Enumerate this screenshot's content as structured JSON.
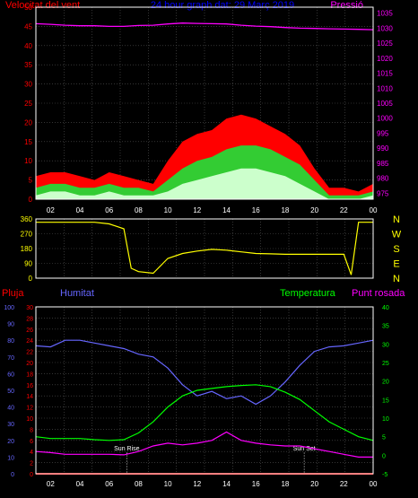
{
  "colors": {
    "background": "#000000",
    "frame": "#ffffff",
    "grid": "#555555",
    "wind_gust": "#ff0000",
    "wind_avg": "#33cc33",
    "wind_min": "#ccffcc",
    "pressure": "#ff00ff",
    "direction": "#ffff00",
    "rain": "#ff0000",
    "humidity": "#6666ff",
    "temperature": "#00ff00",
    "dewpoint": "#ff00ff",
    "title": "#0000ff"
  },
  "chart_data": [
    {
      "type": "line",
      "title": "24 hour graph dat: 29 Març 2019",
      "ylabel_left": "Velocitat del vent",
      "ylabel_right": "Pressió",
      "x_ticks": [
        "02",
        "04",
        "06",
        "08",
        "10",
        "12",
        "14",
        "16",
        "18",
        "20",
        "22",
        "00"
      ],
      "x_range": [
        1,
        24
      ],
      "y_left_ticks": [
        "0",
        "5",
        "10",
        "15",
        "20",
        "25",
        "30",
        "35",
        "40",
        "45",
        "50"
      ],
      "y_left_range": [
        0,
        50
      ],
      "y_right_ticks": [
        "975",
        "980",
        "985",
        "990",
        "995",
        "1000",
        "1005",
        "1010",
        "1015",
        "1020",
        "1025",
        "1030",
        "1035"
      ],
      "y_right_range": [
        973,
        1037
      ],
      "grid": true,
      "series": [
        {
          "name": "Pressió",
          "axis": "right",
          "x": [
            1,
            2,
            3,
            4,
            5,
            6,
            7,
            8,
            9,
            10,
            11,
            12,
            13,
            14,
            15,
            16,
            17,
            18,
            19,
            20,
            21,
            22,
            23,
            24
          ],
          "values": [
            1031.5,
            1031.3,
            1031,
            1030.8,
            1030.8,
            1030.6,
            1030.6,
            1030.9,
            1031,
            1031.4,
            1031.7,
            1031.6,
            1031.5,
            1031.4,
            1031,
            1030.7,
            1030.5,
            1030.2,
            1030,
            1029.9,
            1029.8,
            1029.7,
            1029.6,
            1029.5
          ]
        },
        {
          "axis": "left",
          "x": [
            1,
            2,
            3,
            4,
            5,
            6,
            7,
            8,
            9,
            10,
            11,
            12,
            13,
            14,
            15,
            16,
            17,
            18,
            19,
            20,
            21,
            22,
            23,
            24
          ],
          "values": [
            6,
            7,
            7,
            6,
            5,
            7,
            6,
            5,
            4,
            10,
            15,
            17,
            18,
            21,
            22,
            21,
            19,
            17,
            14,
            8,
            3,
            3,
            2,
            4
          ]
        },
        {
          "axis": "left",
          "x": [
            1,
            2,
            3,
            4,
            5,
            6,
            7,
            8,
            9,
            10,
            11,
            12,
            13,
            14,
            15,
            16,
            17,
            18,
            19,
            20,
            21,
            22,
            23,
            24
          ],
          "values": [
            3,
            4,
            4,
            3,
            3,
            4,
            3,
            3,
            2,
            5,
            8,
            10,
            11,
            13,
            14,
            14,
            13,
            11,
            9,
            5,
            1,
            1,
            1,
            2
          ]
        },
        {
          "axis": "left",
          "x": [
            1,
            2,
            3,
            4,
            5,
            6,
            7,
            8,
            9,
            10,
            11,
            12,
            13,
            14,
            15,
            16,
            17,
            18,
            19,
            20,
            21,
            22,
            23,
            24
          ],
          "values": [
            1,
            2,
            2,
            1,
            1,
            2,
            1,
            1,
            1,
            2,
            4,
            5,
            6,
            7,
            8,
            8,
            7,
            6,
            4,
            2,
            0,
            0,
            0,
            1
          ]
        }
      ]
    },
    {
      "type": "line",
      "y_left_ticks": [
        "360",
        "270",
        "180",
        "90",
        "0"
      ],
      "y_right_letters": [
        "N",
        "W",
        "S",
        "E",
        "N"
      ],
      "y_range": [
        0,
        360
      ],
      "x_range": [
        1,
        24
      ],
      "series": [
        {
          "axis": "left",
          "x": [
            1,
            2,
            3,
            4,
            5,
            6,
            7,
            7.5,
            8,
            9,
            10,
            11,
            12,
            13,
            14,
            15,
            16,
            17,
            18,
            19,
            20,
            21,
            22,
            22.5,
            23,
            24
          ],
          "values": [
            340,
            340,
            340,
            340,
            340,
            330,
            300,
            60,
            40,
            30,
            120,
            150,
            165,
            175,
            170,
            160,
            150,
            148,
            145,
            145,
            145,
            145,
            145,
            20,
            340,
            340
          ]
        }
      ]
    },
    {
      "type": "line",
      "ylabel_rain": "Pluja",
      "ylabel_humidity": "Humitat",
      "ylabel_temperature": "Temperatura",
      "ylabel_dewpoint": "Punt rosada",
      "x_ticks": [
        "02",
        "04",
        "06",
        "08",
        "10",
        "12",
        "14",
        "16",
        "18",
        "20",
        "22",
        "00"
      ],
      "x_range": [
        1,
        24
      ],
      "y_rain_ticks": [
        "0",
        "10",
        "20",
        "30",
        "40",
        "50",
        "60",
        "70",
        "80",
        "90",
        "100"
      ],
      "y_hum_ticks": [
        "0",
        "2",
        "4",
        "6",
        "8",
        "10",
        "12",
        "14",
        "16",
        "18",
        "20",
        "22",
        "24",
        "26",
        "28",
        "30"
      ],
      "y_temp_ticks": [
        "-5",
        "0",
        "5",
        "10",
        "15",
        "20",
        "25",
        "30",
        "35",
        "40"
      ],
      "annotations": [
        {
          "text": "Sun Rise",
          "x": 7.2
        },
        {
          "text": "Sun Set",
          "x": 19.3
        }
      ],
      "series": [
        {
          "axis": "humidity",
          "range": [
            0,
            30
          ],
          "x": [
            1,
            2,
            3,
            4,
            5,
            6,
            7,
            8,
            9,
            10,
            11,
            12,
            13,
            14,
            15,
            16,
            17,
            18,
            19,
            20,
            21,
            22,
            23,
            24
          ],
          "values": [
            23,
            22.8,
            24,
            24,
            23.5,
            23,
            22.5,
            21.5,
            21,
            19,
            16,
            14,
            14.8,
            13.5,
            14,
            12.5,
            14,
            16.5,
            19.5,
            22,
            22.8,
            23,
            23.5,
            24
          ]
        },
        {
          "axis": "temperature",
          "range": [
            -5,
            40
          ],
          "x": [
            1,
            2,
            3,
            4,
            5,
            6,
            7,
            8,
            9,
            10,
            11,
            12,
            13,
            14,
            15,
            16,
            17,
            18,
            19,
            20,
            21,
            22,
            23,
            24
          ],
          "values": [
            5,
            4.5,
            4.5,
            4.5,
            4.2,
            4,
            4.2,
            6,
            9,
            13,
            16,
            17.5,
            18,
            18.5,
            18.8,
            19,
            18.5,
            17,
            15,
            12,
            9,
            7,
            5,
            4
          ]
        },
        {
          "axis": "dewpoint",
          "range": [
            0,
            30
          ],
          "x": [
            1,
            2,
            3,
            4,
            5,
            6,
            7,
            8,
            9,
            10,
            11,
            12,
            13,
            14,
            15,
            16,
            17,
            18,
            19,
            20,
            21,
            22,
            23,
            24
          ],
          "values": [
            4,
            3.8,
            3.5,
            3.5,
            3.5,
            3.5,
            3.4,
            4,
            5,
            5.5,
            5.2,
            5.5,
            6,
            7.5,
            6,
            5.5,
            5.2,
            5,
            5,
            4.5,
            4,
            3.5,
            3,
            3
          ]
        },
        {
          "axis": "rain",
          "range": [
            0,
            100
          ],
          "x": [
            1,
            24
          ],
          "values": [
            0,
            0
          ]
        }
      ]
    }
  ]
}
